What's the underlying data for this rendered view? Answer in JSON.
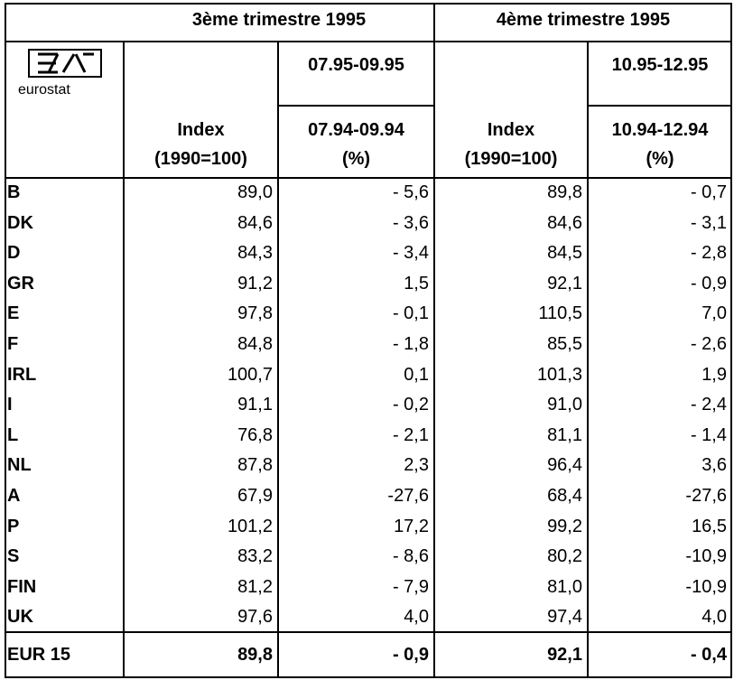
{
  "header": {
    "q3": "3ème trimestre 1995",
    "q4": "4ème trimestre 1995",
    "logo": "eurostat",
    "period_q3": "07.95-09.95",
    "base_q3": "07.94-09.94",
    "period_q4": "10.95-12.95",
    "base_q4": "10.94-12.94",
    "index_q3": "Index",
    "index_base_q3": "(1990=100)",
    "pct_q3": "(%)",
    "index_q4": "Index",
    "index_base_q4": "(1990=100)",
    "pct_q4": "(%)"
  },
  "rows": [
    [
      "B",
      "89,0",
      "- 5,6",
      "89,8",
      "- 0,7"
    ],
    [
      "DK",
      "84,6",
      "- 3,6",
      "84,6",
      "- 3,1"
    ],
    [
      "D",
      "84,3",
      "- 3,4",
      "84,5",
      "- 2,8"
    ],
    [
      "GR",
      "91,2",
      "1,5",
      "92,1",
      "- 0,9"
    ],
    [
      "E",
      "97,8",
      "- 0,1",
      "110,5",
      "7,0"
    ],
    [
      "F",
      "84,8",
      "- 1,8",
      "85,5",
      "- 2,6"
    ],
    [
      "IRL",
      "100,7",
      "0,1",
      "101,3",
      "1,9"
    ],
    [
      "I",
      "91,1",
      "- 0,2",
      "91,0",
      "- 2,4"
    ],
    [
      "L",
      "76,8",
      "- 2,1",
      "81,1",
      "- 1,4"
    ],
    [
      "NL",
      "87,8",
      "2,3",
      "96,4",
      "3,6"
    ],
    [
      "A",
      "67,9",
      "-27,6",
      "68,4",
      "-27,6"
    ],
    [
      "P",
      "101,2",
      "17,2",
      "99,2",
      "16,5"
    ],
    [
      "S",
      "83,2",
      "- 8,6",
      "80,2",
      "-10,9"
    ],
    [
      "FIN",
      "81,2",
      "- 7,9",
      "81,0",
      "-10,9"
    ],
    [
      "UK",
      "97,6",
      "4,0",
      "97,4",
      "4,0"
    ]
  ],
  "total": [
    "EUR 15",
    "89,8",
    "- 0,9",
    "92,1",
    "- 0,4"
  ]
}
